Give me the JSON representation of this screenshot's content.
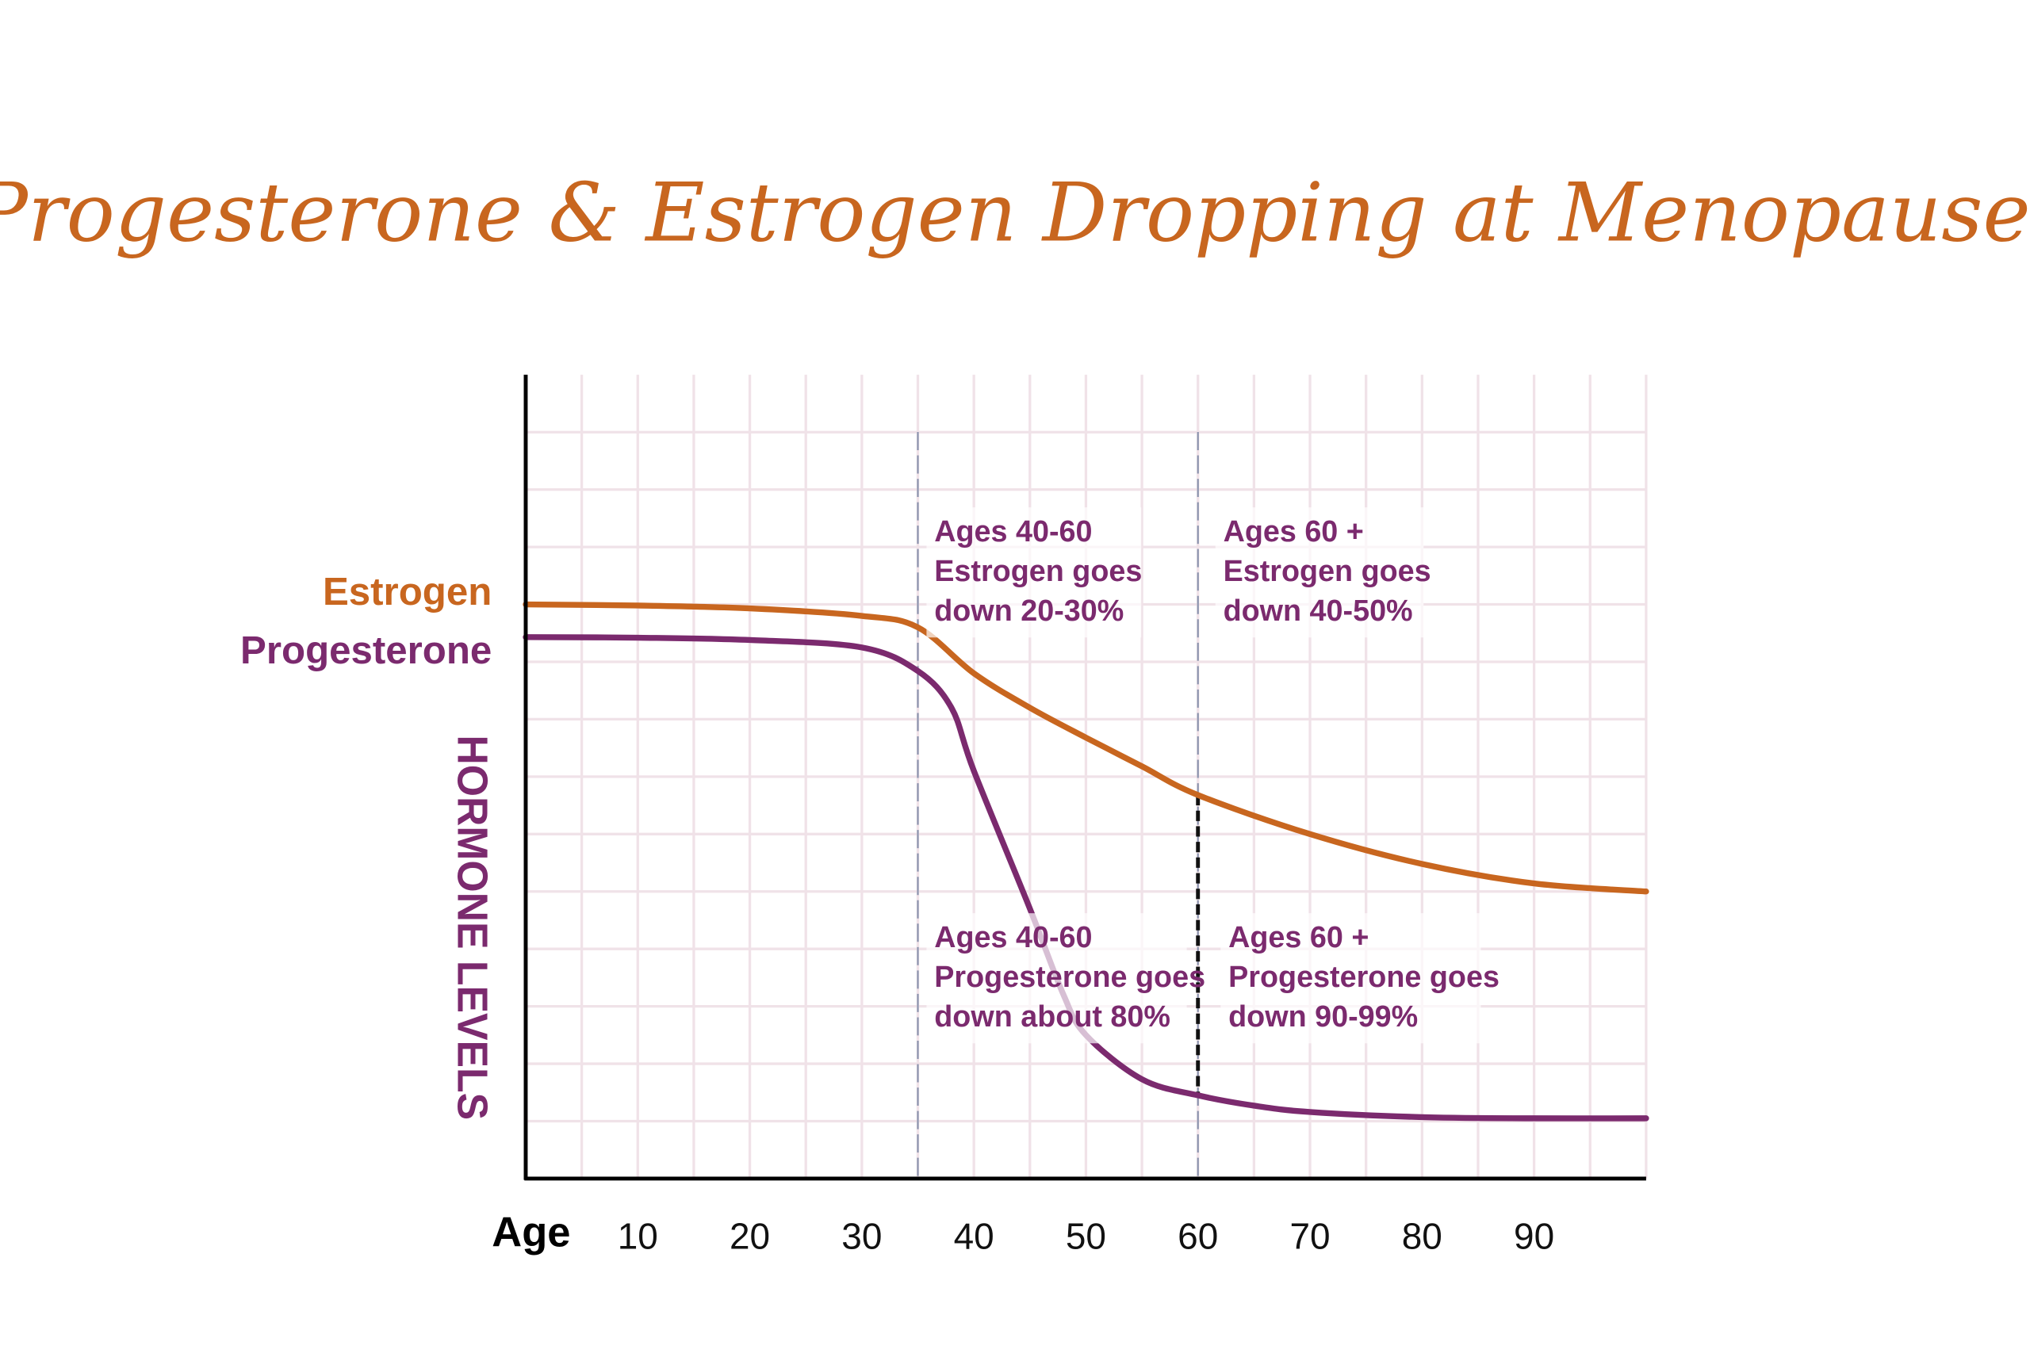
{
  "chart_data": {
    "type": "line",
    "title": "Progesterone & Estrogen Dropping at Menopause",
    "xlabel": "Age",
    "ylabel": "HORMONE LEVELS",
    "xlim": [
      0,
      100
    ],
    "ylim": [
      0,
      14
    ],
    "x_ticks": [
      10,
      20,
      30,
      40,
      50,
      60,
      70,
      80,
      90
    ],
    "grid": true,
    "y_tick_labels_shown": false,
    "series": [
      {
        "name": "Estrogen",
        "color": "#c8661f",
        "x": [
          0,
          10,
          20,
          30,
          35,
          40,
          45,
          50,
          55,
          60,
          70,
          80,
          90,
          100
        ],
        "y": [
          10.0,
          9.98,
          9.93,
          9.8,
          9.6,
          8.8,
          8.2,
          7.68,
          7.18,
          6.68,
          6.0,
          5.48,
          5.14,
          5.0
        ]
      },
      {
        "name": "Progesterone",
        "color": "#7b2a6e",
        "x": [
          0,
          10,
          20,
          30,
          35,
          38,
          40,
          45,
          48,
          50,
          55,
          60,
          65,
          70,
          80,
          90,
          100
        ],
        "y": [
          9.43,
          9.42,
          9.38,
          9.25,
          8.84,
          8.2,
          7.1,
          4.7,
          3.2,
          2.5,
          1.73,
          1.45,
          1.27,
          1.16,
          1.07,
          1.05,
          1.05
        ]
      }
    ],
    "reference_lines": [
      {
        "x": 35,
        "style": "dashed-light"
      },
      {
        "x": 60,
        "style": "dashed-light"
      }
    ],
    "annotations": [
      {
        "lines": [
          "Ages 40-60",
          "Estrogen goes",
          "down 20-30%"
        ]
      },
      {
        "lines": [
          "Ages 60 +",
          "Estrogen goes",
          "down 40-50%"
        ]
      },
      {
        "lines": [
          "Ages 40-60",
          "Progesterone goes",
          "down about 80%"
        ]
      },
      {
        "lines": [
          "Ages 60 +",
          "Progesterone goes",
          "down 90-99%"
        ]
      }
    ]
  }
}
